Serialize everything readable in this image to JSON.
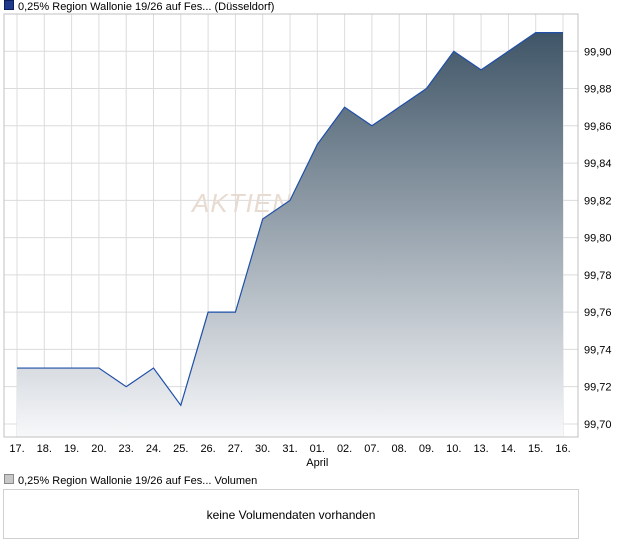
{
  "legend": {
    "price_label": "0,25% Region Wallonie 19/26 auf Fes... (Düsseldorf)",
    "volume_label": "0,25% Region Wallonie 19/26 auf Fes... Volumen"
  },
  "volume": {
    "message": "keine Volumendaten vorhanden"
  },
  "watermark": "AKTIEN",
  "chart_data": {
    "type": "area",
    "title": "",
    "xlabel": "",
    "ylabel": "",
    "x": [
      "17.",
      "18.",
      "19.",
      "20.",
      "23.",
      "24.",
      "25.",
      "26.",
      "27.",
      "30.",
      "31.",
      "01.",
      "02.",
      "07.",
      "08.",
      "09.",
      "10.",
      "13.",
      "14.",
      "15.",
      "16."
    ],
    "month_labels": [
      {
        "at": "01.",
        "label": "April"
      }
    ],
    "series": [
      {
        "name": "0,25% Region Wallonie 19/26 auf Fes... (Düsseldorf)",
        "values": [
          99.73,
          99.73,
          99.73,
          99.73,
          99.72,
          99.73,
          99.71,
          99.76,
          99.76,
          99.81,
          99.82,
          99.85,
          99.87,
          99.86,
          99.87,
          99.88,
          99.9,
          99.89,
          99.9,
          99.91,
          99.91
        ]
      }
    ],
    "yticks": [
      "99,70",
      "99,72",
      "99,74",
      "99,76",
      "99,78",
      "99,80",
      "99,82",
      "99,84",
      "99,86",
      "99,88",
      "99,90"
    ],
    "ylim": [
      99.693,
      99.92
    ],
    "y_axis_position": "right",
    "grid": true,
    "colors": {
      "line": "#1f4fa8",
      "fill_top": "#3f5567",
      "fill_bottom": "#f7f8fa",
      "grid": "#dcdcdc",
      "frame": "#c0c0c0"
    }
  }
}
